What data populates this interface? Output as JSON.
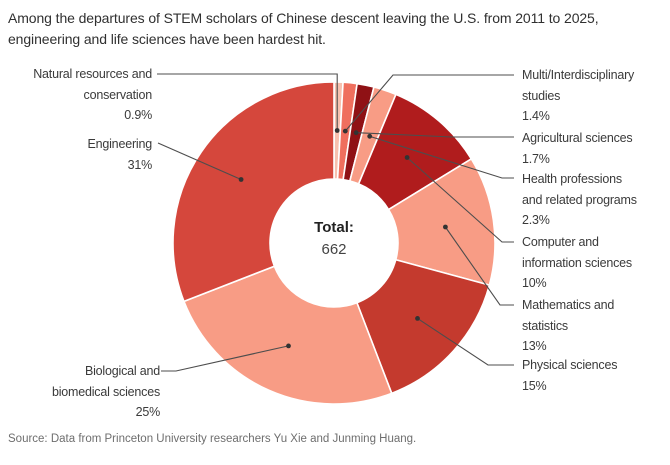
{
  "title": "Among the departures of STEM scholars of Chinese descent leaving the U.S. from 2011 to 2025, engineering and life sciences have been hardest hit.",
  "source": "Source: Data from Princeton University researchers Yu Xie and Junming Huang.",
  "donut_center": {
    "label": "Total:",
    "value": "662"
  },
  "chart_data": {
    "type": "pie",
    "subtype": "donut",
    "title": "Among the departures of STEM scholars of Chinese descent leaving the U.S. from 2011 to 2025, engineering and life sciences have been hardest hit.",
    "total": 662,
    "center_label": "Total:",
    "center_value": "662",
    "start_angle_deg": 0,
    "direction": "clockwise",
    "legend_position": "callout-labels",
    "segments": [
      {
        "id": "natural-resources-and-conservation",
        "label": "Natural resources and conservation",
        "label_lines": [
          "Natural resources and",
          "conservation"
        ],
        "pct": 0.9,
        "pct_label": "0.9%",
        "color": "#f7c0af",
        "label_side": "left"
      },
      {
        "id": "multi-interdisciplinary-studies",
        "label": "Multi/Interdisciplinary studies",
        "label_lines": [
          "Multi/Interdisciplinary",
          "studies"
        ],
        "pct": 1.4,
        "pct_label": "1.4%",
        "color": "#ef6f5e",
        "label_side": "right"
      },
      {
        "id": "agricultural-sciences",
        "label": "Agricultural sciences",
        "label_lines": [
          "Agricultural sciences"
        ],
        "pct": 1.7,
        "pct_label": "1.7%",
        "color": "#8f1115",
        "label_side": "right"
      },
      {
        "id": "health-professions-and-related-programs",
        "label": "Health professions and related programs",
        "label_lines": [
          "Health professions",
          "and related programs"
        ],
        "pct": 2.3,
        "pct_label": "2.3%",
        "color": "#f89c85",
        "label_side": "right"
      },
      {
        "id": "computer-and-information-sciences",
        "label": "Computer and information sciences",
        "label_lines": [
          "Computer and",
          "information sciences"
        ],
        "pct": 10,
        "pct_label": "10%",
        "color": "#b01c1d",
        "label_side": "right"
      },
      {
        "id": "mathematics-and-statistics",
        "label": "Mathematics and statistics",
        "label_lines": [
          "Mathematics and",
          "statistics"
        ],
        "pct": 13,
        "pct_label": "13%",
        "color": "#f89c85",
        "label_side": "right"
      },
      {
        "id": "physical-sciences",
        "label": "Physical sciences",
        "label_lines": [
          "Physical sciences"
        ],
        "pct": 15,
        "pct_label": "15%",
        "color": "#c43a2e",
        "label_side": "right"
      },
      {
        "id": "biological-and-biomedical-sciences",
        "label": "Biological and biomedical sciences",
        "label_lines": [
          "Biological and",
          "biomedical sciences"
        ],
        "pct": 25,
        "pct_label": "25%",
        "color": "#f89c85",
        "label_side": "left"
      },
      {
        "id": "engineering",
        "label": "Engineering",
        "label_lines": [
          "Engineering"
        ],
        "pct": 31,
        "pct_label": "31%",
        "color": "#d5473c",
        "label_side": "left"
      }
    ],
    "colors": {
      "leader_line": "#4d4d4d",
      "leader_dot": "#333333",
      "label_text": "#3a3a3a",
      "title_text": "#303030",
      "source_text": "#6e6e6e",
      "background": "#ffffff"
    }
  }
}
